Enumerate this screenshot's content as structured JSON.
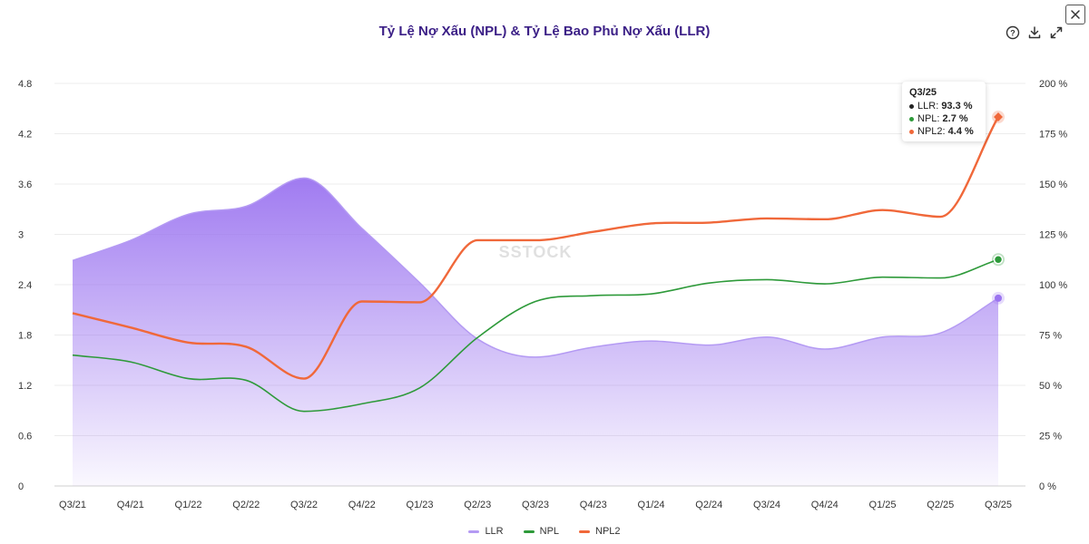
{
  "title": "Tỷ Lệ Nợ Xấu (NPL) & Tỷ Lệ Bao Phủ Nợ Xấu (LLR)",
  "watermark": "SSTOCK",
  "toolbar": {
    "help_icon": "help-circle-icon",
    "download_icon": "download-icon",
    "expand_icon": "expand-icon",
    "close_icon": "close-icon"
  },
  "tooltip": {
    "title": "Q3/25",
    "rows": [
      {
        "label": "LLR",
        "value": "93.3 %",
        "color": "#222222"
      },
      {
        "label": "NPL",
        "value": "2.7 %",
        "color": "#2e9a3a"
      },
      {
        "label": "NPL2",
        "value": "4.4 %",
        "color": "#f0683a"
      }
    ]
  },
  "legend": [
    {
      "label": "LLR",
      "color": "#b49af3"
    },
    {
      "label": "NPL",
      "color": "#2e9a3a"
    },
    {
      "label": "NPL2",
      "color": "#f0683a"
    }
  ],
  "chart_data": {
    "type": "line",
    "title": "Tỷ Lệ Nợ Xấu (NPL) & Tỷ Lệ Bao Phủ Nợ Xấu (LLR)",
    "categories": [
      "Q3/21",
      "Q4/21",
      "Q1/22",
      "Q2/22",
      "Q3/22",
      "Q4/22",
      "Q1/23",
      "Q2/23",
      "Q3/23",
      "Q4/23",
      "Q1/24",
      "Q2/24",
      "Q3/24",
      "Q4/24",
      "Q1/25",
      "Q2/25",
      "Q3/25"
    ],
    "y_left": {
      "ticks": [
        "0",
        "0.6",
        "1.2",
        "1.8",
        "2.4",
        "3",
        "3.6",
        "4.2",
        "4.8"
      ],
      "range": [
        0,
        4.8
      ]
    },
    "y_right": {
      "ticks": [
        "0 %",
        "25 %",
        "50 %",
        "75 %",
        "100 %",
        "125 %",
        "150 %",
        "175 %",
        "200 %"
      ],
      "range": [
        0,
        200
      ]
    },
    "grid": true,
    "legend_position": "bottom",
    "series": [
      {
        "name": "LLR",
        "axis": "right",
        "type": "area",
        "color": "#9b74f0",
        "values": [
          112,
          122,
          135,
          139,
          153,
          128,
          101,
          73,
          64,
          69,
          72,
          70,
          74,
          68,
          74,
          76,
          93.3
        ]
      },
      {
        "name": "NPL",
        "axis": "left",
        "type": "line",
        "color": "#2e9a3a",
        "values": [
          1.56,
          1.48,
          1.28,
          1.26,
          0.89,
          0.98,
          1.17,
          1.77,
          2.2,
          2.27,
          2.29,
          2.42,
          2.46,
          2.41,
          2.49,
          2.48,
          2.7
        ]
      },
      {
        "name": "NPL2",
        "axis": "left",
        "type": "line",
        "color": "#f0683a",
        "values": [
          2.06,
          1.89,
          1.71,
          1.66,
          1.28,
          2.2,
          2.19,
          2.93,
          2.93,
          3.03,
          3.13,
          3.14,
          3.19,
          3.18,
          3.29,
          3.21,
          4.4
        ]
      }
    ]
  }
}
